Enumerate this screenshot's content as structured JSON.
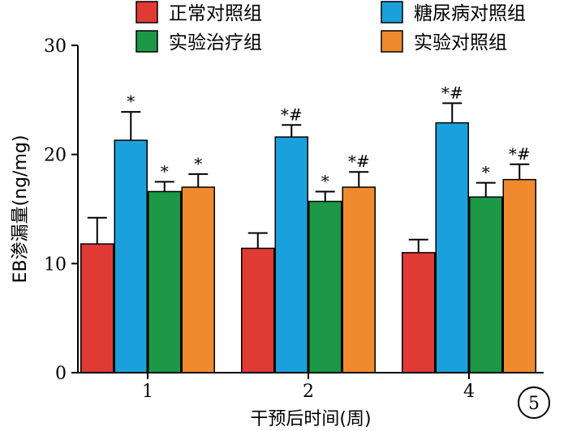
{
  "chart_data": {
    "type": "bar",
    "title": "",
    "xlabel": "干预后时间(周)",
    "ylabel": "EB渗漏量(ng/mg)",
    "ylim": [
      0,
      30
    ],
    "yticks": [
      "0",
      "10",
      "20",
      "30"
    ],
    "categories": [
      "1",
      "2",
      "4"
    ],
    "legend_position": "top",
    "panel_label": "5",
    "series": [
      {
        "name": "正常对照组",
        "color": "#e03a35",
        "values": [
          11.8,
          11.4,
          11.0
        ],
        "errors": [
          2.4,
          1.4,
          1.2
        ],
        "annotations": [
          "",
          "",
          ""
        ]
      },
      {
        "name": "糖尿病对照组",
        "color": "#1aa0db",
        "values": [
          21.3,
          21.6,
          22.9
        ],
        "errors": [
          2.6,
          1.1,
          1.8
        ],
        "annotations": [
          "*",
          "*#",
          "*#"
        ]
      },
      {
        "name": "实验治疗组",
        "color": "#1c9846",
        "values": [
          16.6,
          15.7,
          16.1
        ],
        "errors": [
          0.9,
          0.9,
          1.3
        ],
        "annotations": [
          "*",
          "*",
          "*"
        ]
      },
      {
        "name": "实验对照组",
        "color": "#ef8a2e",
        "values": [
          17.0,
          17.0,
          17.7
        ],
        "errors": [
          1.2,
          1.4,
          1.4
        ],
        "annotations": [
          "*",
          "*#",
          "*#"
        ]
      }
    ]
  }
}
